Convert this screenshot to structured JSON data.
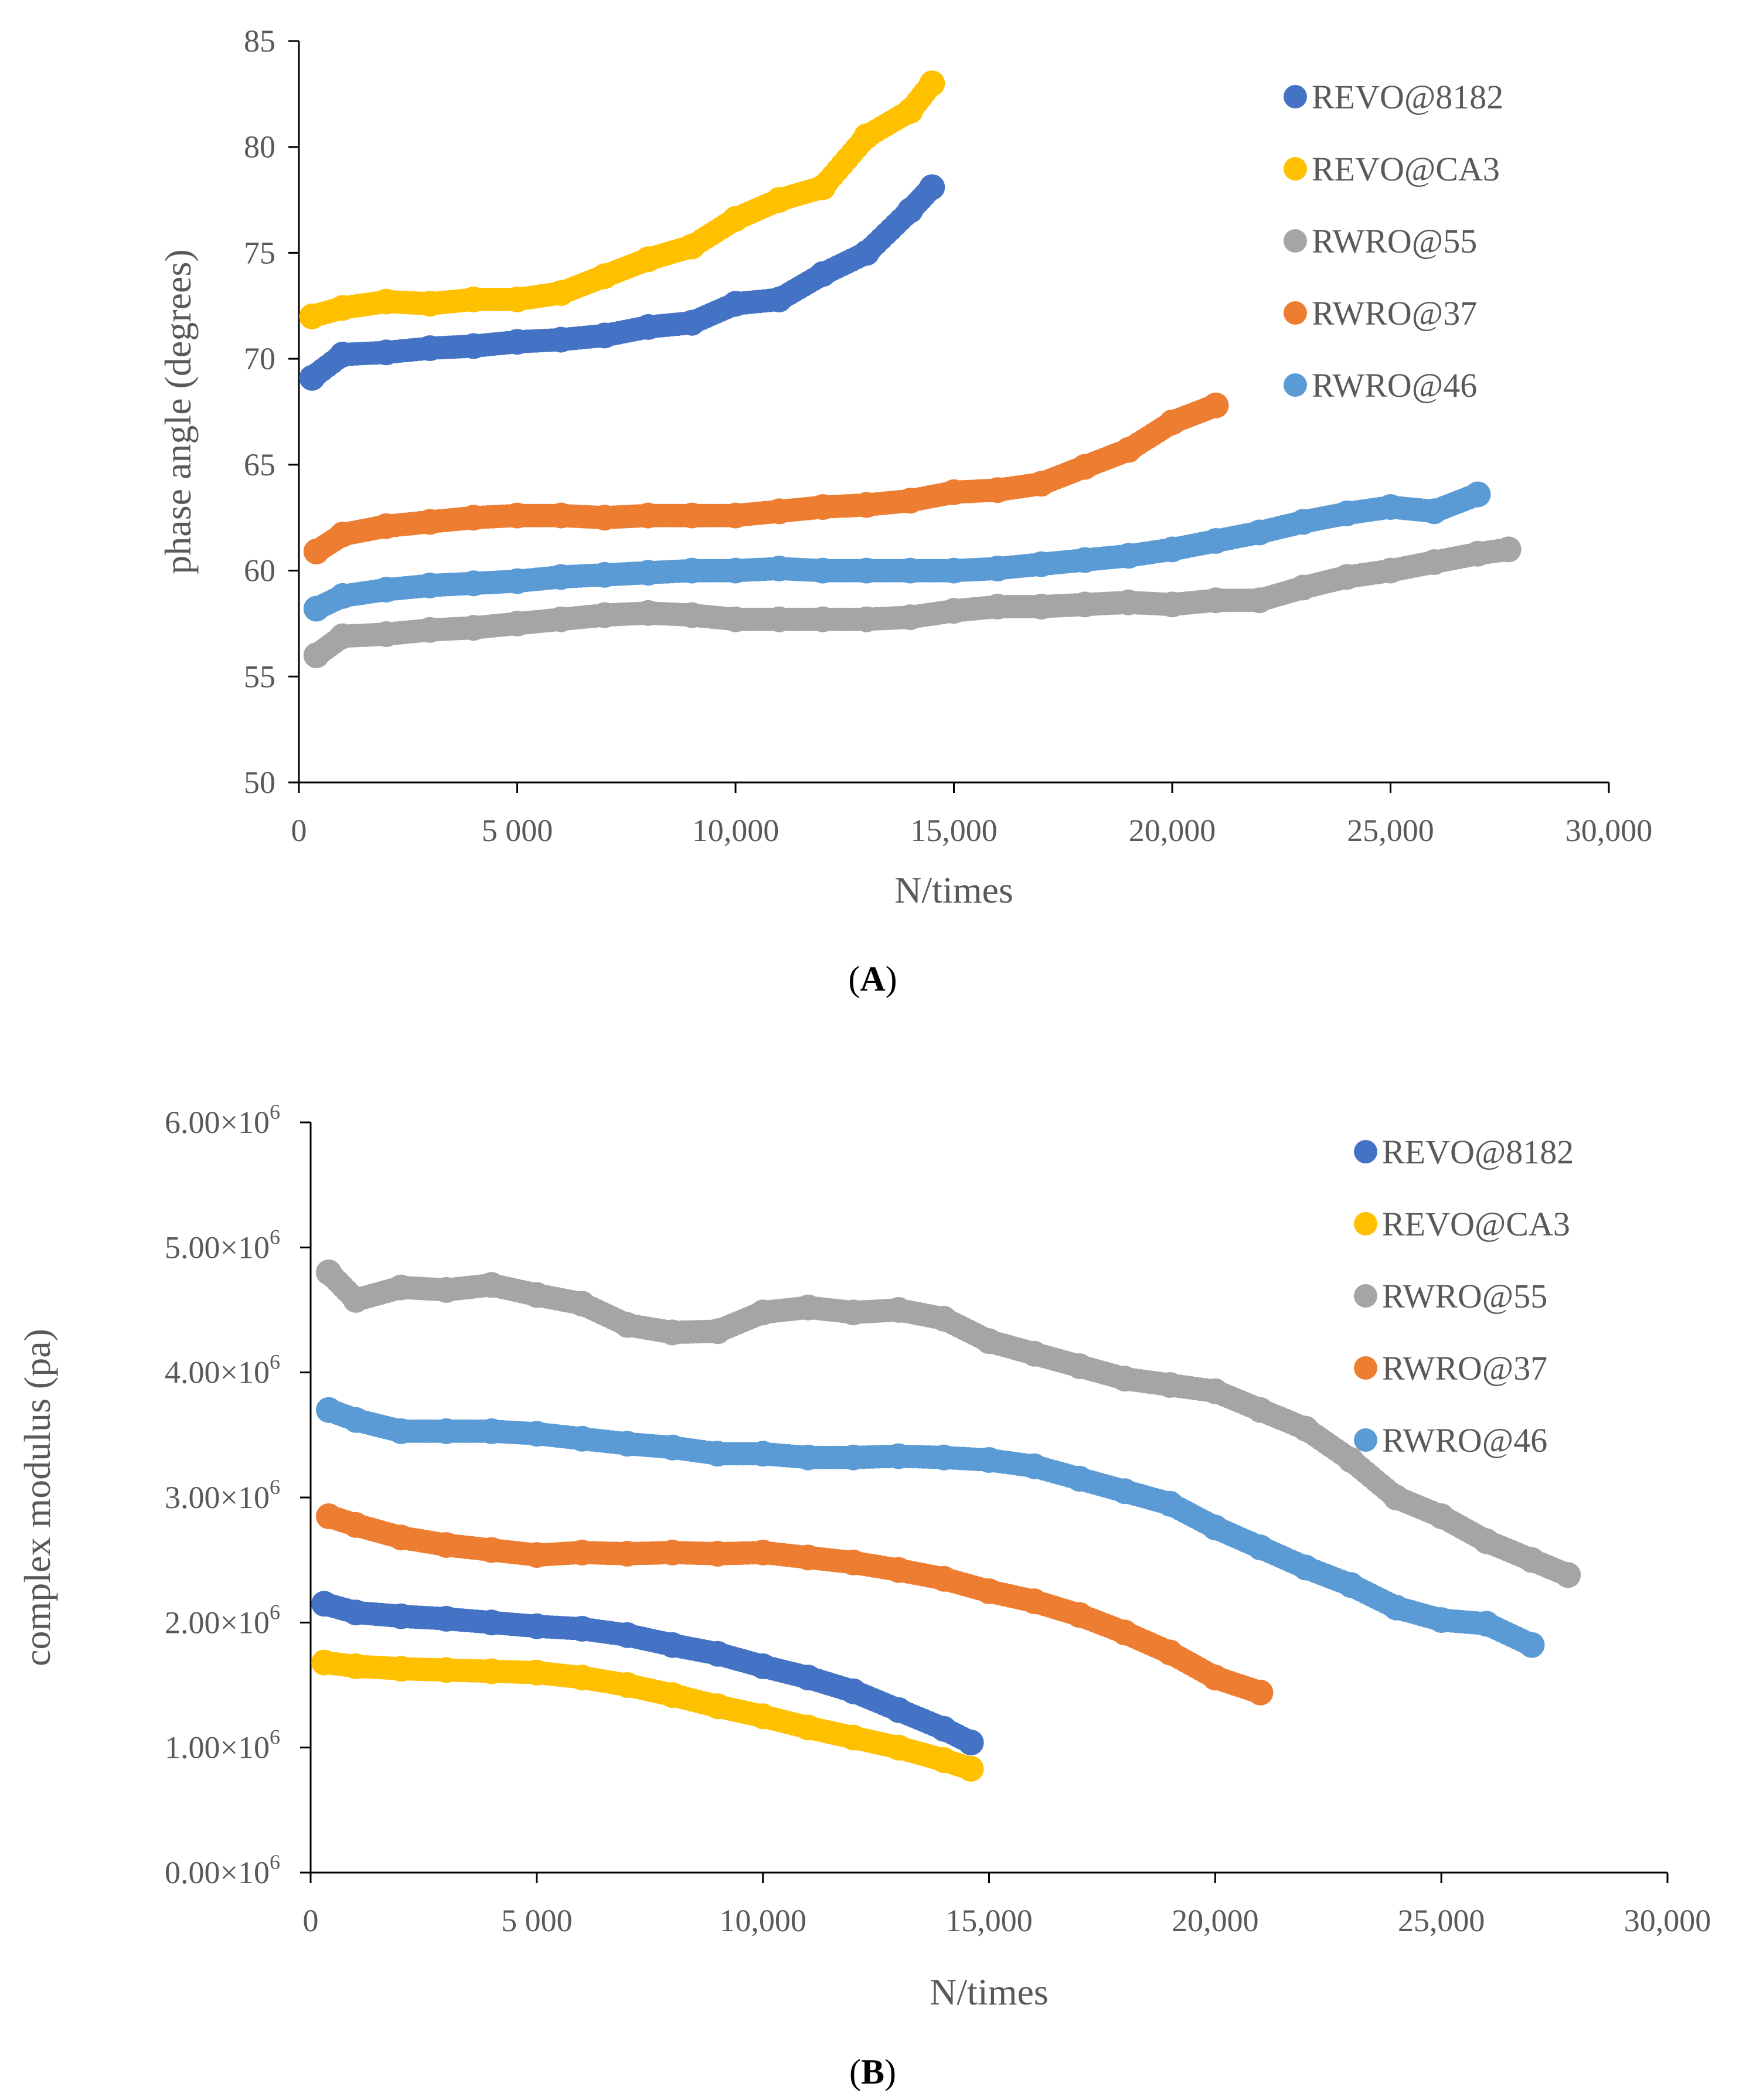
{
  "chart_data": [
    {
      "type": "scatter",
      "panel_label": "(A)",
      "xlabel": "N/times",
      "ylabel": "phase angle (degrees)",
      "xlim": [
        0,
        30000
      ],
      "ylim": [
        50,
        85
      ],
      "x_ticks": [
        0,
        5000,
        10000,
        15000,
        20000,
        25000,
        30000
      ],
      "x_tick_labels": [
        "0",
        "5 000",
        "10,000",
        "15,000",
        "20,000",
        "25,000",
        "30,000"
      ],
      "y_ticks": [
        50,
        55,
        60,
        65,
        70,
        75,
        80,
        85
      ],
      "y_tick_labels": [
        "50",
        "55",
        "60",
        "65",
        "70",
        "75",
        "80",
        "85"
      ],
      "legend_position": "top-right",
      "series": [
        {
          "name": "REVO@8182",
          "color": "#4472C4",
          "points": [
            [
              300,
              69.1
            ],
            [
              1000,
              70.2
            ],
            [
              2000,
              70.3
            ],
            [
              3000,
              70.5
            ],
            [
              4000,
              70.6
            ],
            [
              5000,
              70.8
            ],
            [
              6000,
              70.9
            ],
            [
              7000,
              71.1
            ],
            [
              8000,
              71.5
            ],
            [
              9000,
              71.7
            ],
            [
              10000,
              72.6
            ],
            [
              11000,
              72.8
            ],
            [
              12000,
              74.0
            ],
            [
              13000,
              75.0
            ],
            [
              14000,
              77.0
            ],
            [
              14500,
              78.1
            ]
          ]
        },
        {
          "name": "REVO@CA3",
          "color": "#FFC000",
          "points": [
            [
              300,
              72.0
            ],
            [
              1000,
              72.4
            ],
            [
              2000,
              72.7
            ],
            [
              3000,
              72.6
            ],
            [
              4000,
              72.8
            ],
            [
              5000,
              72.8
            ],
            [
              6000,
              73.1
            ],
            [
              7000,
              73.9
            ],
            [
              8000,
              74.7
            ],
            [
              9000,
              75.3
            ],
            [
              10000,
              76.6
            ],
            [
              11000,
              77.5
            ],
            [
              12000,
              78.1
            ],
            [
              13000,
              80.5
            ],
            [
              14000,
              81.7
            ],
            [
              14500,
              83.0
            ]
          ]
        },
        {
          "name": "RWRO@55",
          "color": "#A5A5A5",
          "points": [
            [
              400,
              56.0
            ],
            [
              1000,
              56.9
            ],
            [
              2000,
              57.0
            ],
            [
              3000,
              57.2
            ],
            [
              4000,
              57.3
            ],
            [
              5000,
              57.5
            ],
            [
              6000,
              57.7
            ],
            [
              7000,
              57.9
            ],
            [
              8000,
              58.0
            ],
            [
              9000,
              57.9
            ],
            [
              10000,
              57.7
            ],
            [
              11000,
              57.7
            ],
            [
              12000,
              57.7
            ],
            [
              13000,
              57.7
            ],
            [
              14000,
              57.8
            ],
            [
              15000,
              58.1
            ],
            [
              16000,
              58.3
            ],
            [
              17000,
              58.3
            ],
            [
              18000,
              58.4
            ],
            [
              19000,
              58.5
            ],
            [
              20000,
              58.4
            ],
            [
              21000,
              58.6
            ],
            [
              22000,
              58.6
            ],
            [
              23000,
              59.2
            ],
            [
              24000,
              59.7
            ],
            [
              25000,
              60.0
            ],
            [
              26000,
              60.4
            ],
            [
              27000,
              60.8
            ],
            [
              27700,
              61.0
            ]
          ]
        },
        {
          "name": "RWRO@37",
          "color": "#ED7D31",
          "points": [
            [
              400,
              60.9
            ],
            [
              1000,
              61.7
            ],
            [
              2000,
              62.1
            ],
            [
              3000,
              62.3
            ],
            [
              4000,
              62.5
            ],
            [
              5000,
              62.6
            ],
            [
              6000,
              62.6
            ],
            [
              7000,
              62.5
            ],
            [
              8000,
              62.6
            ],
            [
              9000,
              62.6
            ],
            [
              10000,
              62.6
            ],
            [
              11000,
              62.8
            ],
            [
              12000,
              63.0
            ],
            [
              13000,
              63.1
            ],
            [
              14000,
              63.3
            ],
            [
              15000,
              63.7
            ],
            [
              16000,
              63.8
            ],
            [
              17000,
              64.1
            ],
            [
              18000,
              64.9
            ],
            [
              19000,
              65.7
            ],
            [
              20000,
              67.0
            ],
            [
              21000,
              67.8
            ]
          ]
        },
        {
          "name": "RWRO@46",
          "color": "#5B9BD5",
          "points": [
            [
              400,
              58.2
            ],
            [
              1000,
              58.8
            ],
            [
              2000,
              59.1
            ],
            [
              3000,
              59.3
            ],
            [
              4000,
              59.4
            ],
            [
              5000,
              59.5
            ],
            [
              6000,
              59.7
            ],
            [
              7000,
              59.8
            ],
            [
              8000,
              59.9
            ],
            [
              9000,
              60.0
            ],
            [
              10000,
              60.0
            ],
            [
              11000,
              60.1
            ],
            [
              12000,
              60.0
            ],
            [
              13000,
              60.0
            ],
            [
              14000,
              60.0
            ],
            [
              15000,
              60.0
            ],
            [
              16000,
              60.1
            ],
            [
              17000,
              60.3
            ],
            [
              18000,
              60.5
            ],
            [
              19000,
              60.7
            ],
            [
              20000,
              61.0
            ],
            [
              21000,
              61.4
            ],
            [
              22000,
              61.8
            ],
            [
              23000,
              62.3
            ],
            [
              24000,
              62.7
            ],
            [
              25000,
              63.0
            ],
            [
              26000,
              62.8
            ],
            [
              27000,
              63.6
            ]
          ]
        }
      ]
    },
    {
      "type": "scatter",
      "panel_label": "(B)",
      "xlabel": "N/times",
      "ylabel": "complex modulus (pa)",
      "xlim": [
        0,
        30000
      ],
      "ylim": [
        0,
        6000000
      ],
      "x_ticks": [
        0,
        5000,
        10000,
        15000,
        20000,
        25000,
        30000
      ],
      "x_tick_labels": [
        "0",
        "5 000",
        "10,000",
        "15,000",
        "20,000",
        "25,000",
        "30,000"
      ],
      "y_ticks": [
        0,
        1000000,
        2000000,
        3000000,
        4000000,
        5000000,
        6000000
      ],
      "y_tick_labels": [
        "0.00×10",
        "1.00×10",
        "2.00×10",
        "3.00×10",
        "4.00×10",
        "5.00×10",
        "6.00×10"
      ],
      "y_tick_exponent": "6",
      "legend_position": "top-right",
      "series": [
        {
          "name": "REVO@8182",
          "color": "#4472C4",
          "points": [
            [
              300,
              2150000
            ],
            [
              1000,
              2080000
            ],
            [
              2000,
              2050000
            ],
            [
              3000,
              2030000
            ],
            [
              4000,
              2000000
            ],
            [
              5000,
              1970000
            ],
            [
              6000,
              1950000
            ],
            [
              7000,
              1900000
            ],
            [
              8000,
              1820000
            ],
            [
              9000,
              1750000
            ],
            [
              10000,
              1650000
            ],
            [
              11000,
              1560000
            ],
            [
              12000,
              1450000
            ],
            [
              13000,
              1300000
            ],
            [
              14000,
              1150000
            ],
            [
              14600,
              1040000
            ]
          ]
        },
        {
          "name": "REVO@CA3",
          "color": "#FFC000",
          "points": [
            [
              300,
              1680000
            ],
            [
              1000,
              1650000
            ],
            [
              2000,
              1630000
            ],
            [
              3000,
              1620000
            ],
            [
              4000,
              1610000
            ],
            [
              5000,
              1600000
            ],
            [
              6000,
              1560000
            ],
            [
              7000,
              1500000
            ],
            [
              8000,
              1420000
            ],
            [
              9000,
              1330000
            ],
            [
              10000,
              1250000
            ],
            [
              11000,
              1160000
            ],
            [
              12000,
              1080000
            ],
            [
              13000,
              1000000
            ],
            [
              14000,
              900000
            ],
            [
              14600,
              830000
            ]
          ]
        },
        {
          "name": "RWRO@55",
          "color": "#A5A5A5",
          "points": [
            [
              400,
              4800000
            ],
            [
              1000,
              4580000
            ],
            [
              2000,
              4680000
            ],
            [
              3000,
              4660000
            ],
            [
              4000,
              4700000
            ],
            [
              5000,
              4620000
            ],
            [
              6000,
              4550000
            ],
            [
              7000,
              4380000
            ],
            [
              8000,
              4320000
            ],
            [
              9000,
              4330000
            ],
            [
              10000,
              4480000
            ],
            [
              11000,
              4520000
            ],
            [
              12000,
              4480000
            ],
            [
              13000,
              4500000
            ],
            [
              14000,
              4430000
            ],
            [
              15000,
              4250000
            ],
            [
              16000,
              4150000
            ],
            [
              17000,
              4050000
            ],
            [
              18000,
              3950000
            ],
            [
              19000,
              3900000
            ],
            [
              20000,
              3850000
            ],
            [
              21000,
              3700000
            ],
            [
              22000,
              3550000
            ],
            [
              23000,
              3300000
            ],
            [
              24000,
              3000000
            ],
            [
              25000,
              2850000
            ],
            [
              26000,
              2650000
            ],
            [
              27000,
              2500000
            ],
            [
              27800,
              2380000
            ]
          ]
        },
        {
          "name": "RWRO@37",
          "color": "#ED7D31",
          "points": [
            [
              400,
              2850000
            ],
            [
              1000,
              2780000
            ],
            [
              2000,
              2680000
            ],
            [
              3000,
              2620000
            ],
            [
              4000,
              2580000
            ],
            [
              5000,
              2540000
            ],
            [
              6000,
              2560000
            ],
            [
              7000,
              2550000
            ],
            [
              8000,
              2560000
            ],
            [
              9000,
              2550000
            ],
            [
              10000,
              2560000
            ],
            [
              11000,
              2520000
            ],
            [
              12000,
              2480000
            ],
            [
              13000,
              2420000
            ],
            [
              14000,
              2350000
            ],
            [
              15000,
              2250000
            ],
            [
              16000,
              2170000
            ],
            [
              17000,
              2060000
            ],
            [
              18000,
              1920000
            ],
            [
              19000,
              1760000
            ],
            [
              20000,
              1560000
            ],
            [
              21000,
              1440000
            ]
          ]
        },
        {
          "name": "RWRO@46",
          "color": "#5B9BD5",
          "points": [
            [
              400,
              3700000
            ],
            [
              1000,
              3620000
            ],
            [
              2000,
              3530000
            ],
            [
              3000,
              3530000
            ],
            [
              4000,
              3530000
            ],
            [
              5000,
              3510000
            ],
            [
              6000,
              3470000
            ],
            [
              7000,
              3430000
            ],
            [
              8000,
              3400000
            ],
            [
              9000,
              3350000
            ],
            [
              10000,
              3350000
            ],
            [
              11000,
              3320000
            ],
            [
              12000,
              3320000
            ],
            [
              13000,
              3330000
            ],
            [
              14000,
              3320000
            ],
            [
              15000,
              3300000
            ],
            [
              16000,
              3250000
            ],
            [
              17000,
              3150000
            ],
            [
              18000,
              3050000
            ],
            [
              19000,
              2950000
            ],
            [
              20000,
              2760000
            ],
            [
              21000,
              2600000
            ],
            [
              22000,
              2440000
            ],
            [
              23000,
              2300000
            ],
            [
              24000,
              2120000
            ],
            [
              25000,
              2020000
            ],
            [
              26000,
              1990000
            ],
            [
              27000,
              1820000
            ]
          ]
        }
      ]
    }
  ]
}
